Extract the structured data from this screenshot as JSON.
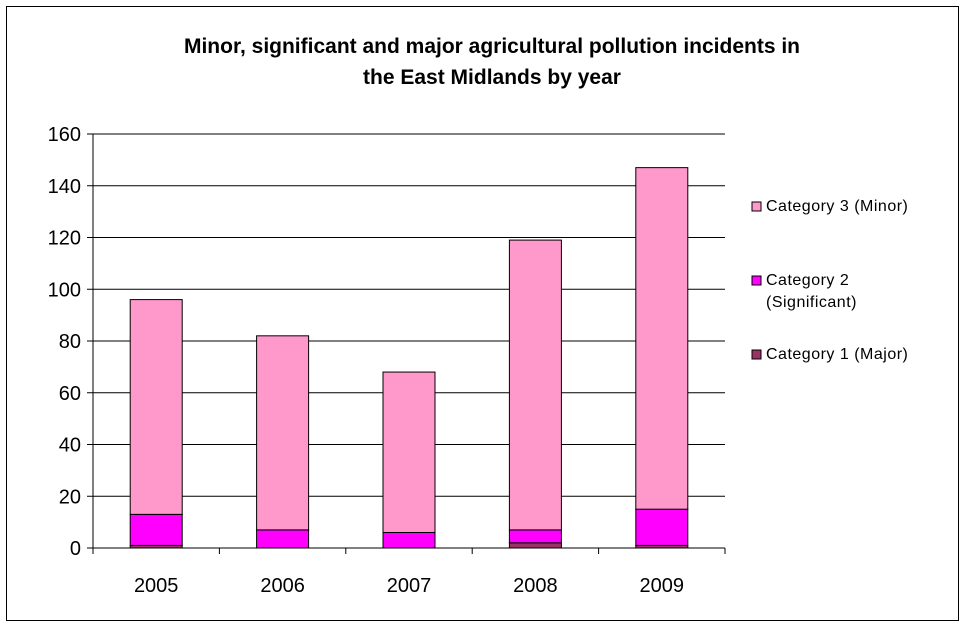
{
  "chart_data": {
    "type": "bar",
    "stacked": true,
    "title_line1": "Minor, significant and major agricultural pollution incidents in",
    "title_line2": "the East Midlands by year",
    "xlabel": "",
    "ylabel": "",
    "categories": [
      "2005",
      "2006",
      "2007",
      "2008",
      "2009"
    ],
    "ylim": [
      0,
      160
    ],
    "yticks": [
      0,
      20,
      40,
      60,
      80,
      100,
      120,
      140,
      160
    ],
    "grid": true,
    "legend_position": "right",
    "series": [
      {
        "name": "Category 1 (Major)",
        "legend_lines": [
          "Category 1 (Major)"
        ],
        "values": [
          1,
          0,
          0,
          2,
          1
        ],
        "color": "#993366"
      },
      {
        "name": "Category 2 (Significant)",
        "legend_lines": [
          "Category 2",
          "(Significant)"
        ],
        "values": [
          12,
          7,
          6,
          5,
          14
        ],
        "color": "#ff00ff"
      },
      {
        "name": "Category 3 (Minor)",
        "legend_lines": [
          "Category 3 (Minor)"
        ],
        "values": [
          83,
          75,
          62,
          112,
          132
        ],
        "color": "#ff99cc"
      }
    ],
    "legend_order": [
      2,
      1,
      0
    ]
  }
}
